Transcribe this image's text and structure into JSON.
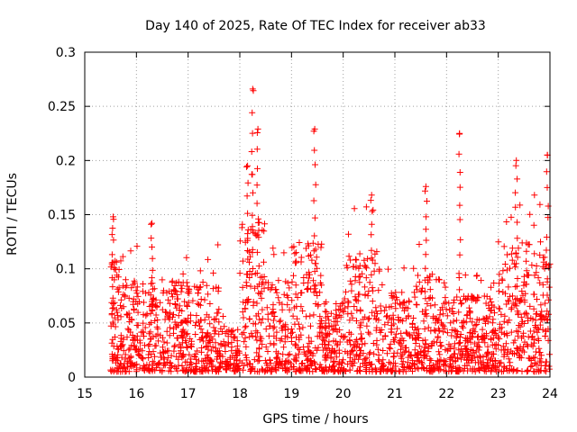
{
  "chart_data": {
    "type": "scatter",
    "title": "Day 140 of 2025, Rate Of TEC Index for receiver ab33",
    "xlabel": "GPS time / hours",
    "ylabel": "ROTI / TECUs",
    "xlim": [
      15,
      24
    ],
    "ylim": [
      0,
      0.3
    ],
    "x_ticks": [
      15,
      16,
      17,
      18,
      19,
      20,
      21,
      22,
      23,
      24
    ],
    "x_tick_labels": [
      "15",
      "16",
      "17",
      "18",
      "19",
      "20",
      "21",
      "22",
      "23",
      "24"
    ],
    "y_ticks": [
      0,
      0.05,
      0.1,
      0.15,
      0.2,
      0.25,
      0.3
    ],
    "y_tick_labels": [
      "0",
      "0.05",
      "0.1",
      "0.15",
      "0.2",
      "0.25",
      "0.3"
    ],
    "grid": true,
    "marker": "+",
    "series": [
      {
        "name": "ROTI",
        "color": "#ff0000",
        "x_range": [
          15.5,
          24.0
        ],
        "typical_y_range": [
          0.005,
          0.1
        ],
        "notable_peaks": [
          {
            "x": 15.55,
            "y": 0.148
          },
          {
            "x": 16.3,
            "y": 0.142
          },
          {
            "x": 18.15,
            "y": 0.195
          },
          {
            "x": 18.25,
            "y": 0.266
          },
          {
            "x": 18.35,
            "y": 0.229
          },
          {
            "x": 19.45,
            "y": 0.229
          },
          {
            "x": 20.55,
            "y": 0.168
          },
          {
            "x": 21.6,
            "y": 0.176
          },
          {
            "x": 22.25,
            "y": 0.225
          },
          {
            "x": 23.35,
            "y": 0.2
          },
          {
            "x": 23.95,
            "y": 0.205
          }
        ]
      }
    ]
  }
}
